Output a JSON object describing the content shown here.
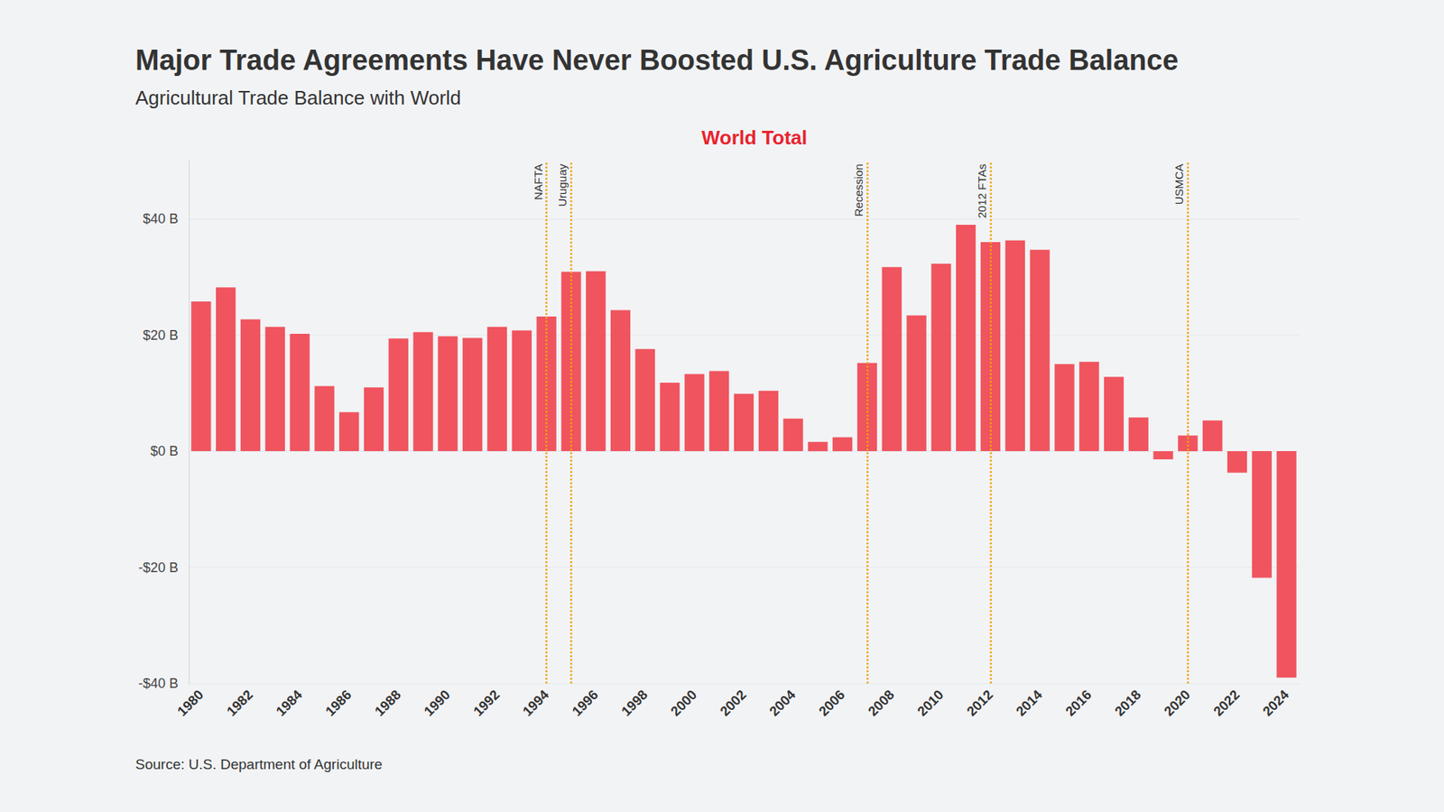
{
  "chart_data": {
    "type": "bar",
    "title": "Major Trade Agreements Have Never Boosted U.S. Agriculture Trade Balance",
    "subtitle": "Agricultural Trade Balance with World",
    "panel_title": "World Total",
    "source": "Source: U.S. Department of Agriculture",
    "x": [
      1980,
      1981,
      1982,
      1983,
      1984,
      1985,
      1986,
      1987,
      1988,
      1989,
      1990,
      1991,
      1992,
      1993,
      1994,
      1995,
      1996,
      1997,
      1998,
      1999,
      2000,
      2001,
      2002,
      2003,
      2004,
      2005,
      2006,
      2007,
      2008,
      2009,
      2010,
      2011,
      2012,
      2013,
      2014,
      2015,
      2016,
      2017,
      2018,
      2019,
      2020,
      2021,
      2022,
      2023,
      2024
    ],
    "xticks": [
      1980,
      1982,
      1984,
      1986,
      1988,
      1990,
      1992,
      1994,
      1996,
      1998,
      2000,
      2002,
      2004,
      2006,
      2008,
      2010,
      2012,
      2014,
      2016,
      2018,
      2020,
      2022,
      2024
    ],
    "values": [
      25.8,
      28.2,
      22.7,
      21.4,
      20.2,
      11.2,
      6.7,
      11.0,
      19.4,
      20.5,
      19.8,
      19.5,
      21.4,
      20.8,
      23.2,
      30.9,
      31.0,
      24.3,
      17.6,
      11.8,
      13.3,
      13.8,
      9.9,
      10.4,
      5.6,
      1.6,
      2.4,
      15.2,
      31.7,
      23.4,
      32.3,
      39.0,
      36.0,
      36.3,
      34.7,
      15.0,
      15.4,
      12.8,
      5.8,
      -1.4,
      2.7,
      5.3,
      -3.7,
      -21.8,
      -39.0
    ],
    "color": "#ef4b55",
    "ylim": [
      -40,
      50
    ],
    "yticks": [
      {
        "value": -40,
        "label": "-$40 B"
      },
      {
        "value": -20,
        "label": "-$20 B"
      },
      {
        "value": 0,
        "label": "$0 B"
      },
      {
        "value": 20,
        "label": "$20 B"
      },
      {
        "value": 40,
        "label": "$40 B"
      }
    ],
    "annotations": [
      {
        "x": 1994,
        "label": "NAFTA"
      },
      {
        "x": 1995,
        "label": "Uruguay"
      },
      {
        "x": 2007,
        "label": "Recession"
      },
      {
        "x": 2012,
        "label": "2012 FTAs"
      },
      {
        "x": 2020,
        "label": "USMCA"
      }
    ],
    "annotation_color": "#f0a30a",
    "grid": true,
    "data_labels": false
  }
}
